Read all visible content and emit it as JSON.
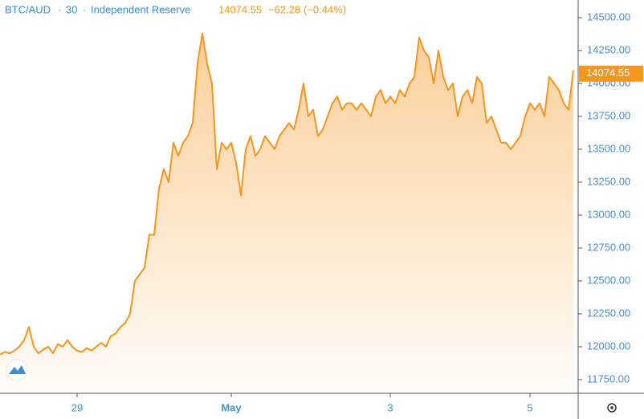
{
  "chart_data": {
    "type": "area",
    "symbol": "BTC/AUD",
    "interval": "30",
    "exchange": "Independent Reserve",
    "last_price": {
      "value": 14074.55,
      "label": "14074.55"
    },
    "change": "−62.28",
    "change_percent": "(−0.44%)",
    "color": "#f7961e",
    "categories": [
      null,
      null,
      null,
      null,
      null,
      null,
      null,
      null,
      null,
      null,
      null,
      null,
      null,
      null,
      null,
      null,
      "29",
      null,
      null,
      null,
      null,
      null,
      null,
      null,
      null,
      null,
      null,
      null,
      null,
      null,
      null,
      null,
      null,
      null,
      null,
      null,
      null,
      null,
      null,
      null,
      null,
      null,
      null,
      null,
      null,
      null,
      null,
      null,
      "May",
      null,
      null,
      null,
      null,
      null,
      null,
      null,
      null,
      null,
      null,
      null,
      null,
      null,
      null,
      null,
      null,
      null,
      null,
      null,
      null,
      null,
      null,
      null,
      null,
      null,
      null,
      null,
      null,
      null,
      null,
      null,
      null,
      "3",
      null,
      null,
      null,
      null,
      null,
      null,
      null,
      null,
      null,
      null,
      null,
      null,
      null,
      null,
      null,
      null,
      null,
      null,
      null,
      null,
      null,
      null,
      null,
      null,
      null,
      null,
      null,
      null,
      "5",
      null,
      null,
      null,
      null,
      null,
      null,
      null,
      null,
      null
    ],
    "values": [
      11940,
      11960,
      11950,
      11970,
      12000,
      12050,
      12150,
      12000,
      11950,
      11980,
      12000,
      11950,
      12020,
      12000,
      12050,
      12000,
      11970,
      11960,
      11990,
      11970,
      12000,
      12030,
      12000,
      12080,
      12100,
      12150,
      12180,
      12250,
      12500,
      12550,
      12600,
      12850,
      12850,
      13200,
      13350,
      13250,
      13550,
      13450,
      13550,
      13600,
      13700,
      14150,
      14380,
      14150,
      14000,
      13350,
      13550,
      13500,
      13550,
      13400,
      13150,
      13500,
      13600,
      13450,
      13500,
      13600,
      13550,
      13500,
      13600,
      13650,
      13700,
      13650,
      13800,
      14000,
      13750,
      13800,
      13600,
      13650,
      13750,
      13850,
      13900,
      13800,
      13850,
      13850,
      13800,
      13850,
      13800,
      13750,
      13900,
      13950,
      13850,
      13900,
      13850,
      13950,
      13900,
      14000,
      14050,
      14350,
      14250,
      14200,
      14000,
      14250,
      14050,
      13950,
      14000,
      13750,
      13900,
      13950,
      13850,
      14050,
      14000,
      13700,
      13750,
      13650,
      13550,
      13550,
      13500,
      13550,
      13600,
      13750,
      13850,
      13800,
      13850,
      13750,
      14050,
      14000,
      13950,
      13850,
      13800,
      14100
    ],
    "ylim": [
      11646,
      14634
    ],
    "yticks": [
      {
        "value": 11750,
        "label": "11750.00"
      },
      {
        "value": 12000,
        "label": "12000.00"
      },
      {
        "value": 12250,
        "label": "12250.00"
      },
      {
        "value": 12500,
        "label": "12500.00"
      },
      {
        "value": 12750,
        "label": "12750.00"
      },
      {
        "value": 13000,
        "label": "13000.00"
      },
      {
        "value": 13250,
        "label": "13250.00"
      },
      {
        "value": 13500,
        "label": "13500.00"
      },
      {
        "value": 13750,
        "label": "13750.00"
      },
      {
        "value": 14000,
        "label": "14000.00"
      },
      {
        "value": 14250,
        "label": "14250.00"
      },
      {
        "value": 14500,
        "label": "14500.00"
      }
    ]
  }
}
